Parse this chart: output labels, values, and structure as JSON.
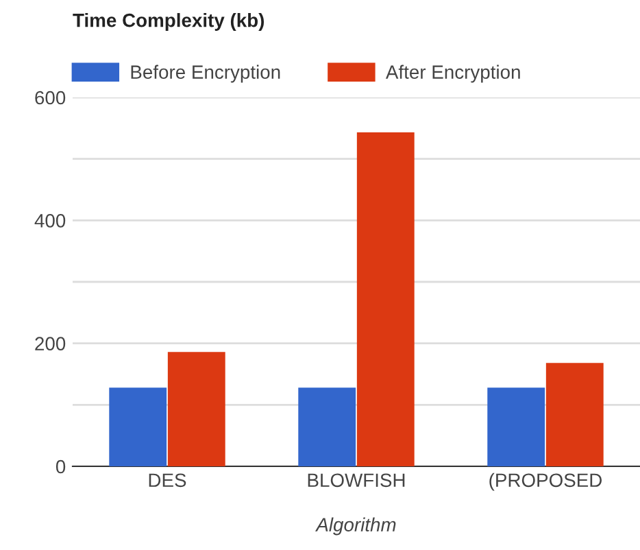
{
  "chart_data": {
    "type": "bar",
    "title": "Time Complexity (kb)",
    "xlabel": "Algorithm",
    "categories": [
      "DES",
      "BLOWFISH",
      "(PROPOSED"
    ],
    "series": [
      {
        "name": "Before Encryption",
        "color": "#3366cc",
        "values": [
          128,
          128,
          128
        ]
      },
      {
        "name": "After Encryption",
        "color": "#dc3912",
        "values": [
          186,
          543,
          168
        ]
      }
    ],
    "ylim": [
      0,
      600
    ],
    "yticks": [
      0,
      {
        "value": 100,
        "label": null
      },
      200,
      {
        "value": 300,
        "label": null
      },
      400,
      {
        "value": 500,
        "label": null
      },
      600
    ],
    "grid": "y",
    "legend": "top left"
  }
}
